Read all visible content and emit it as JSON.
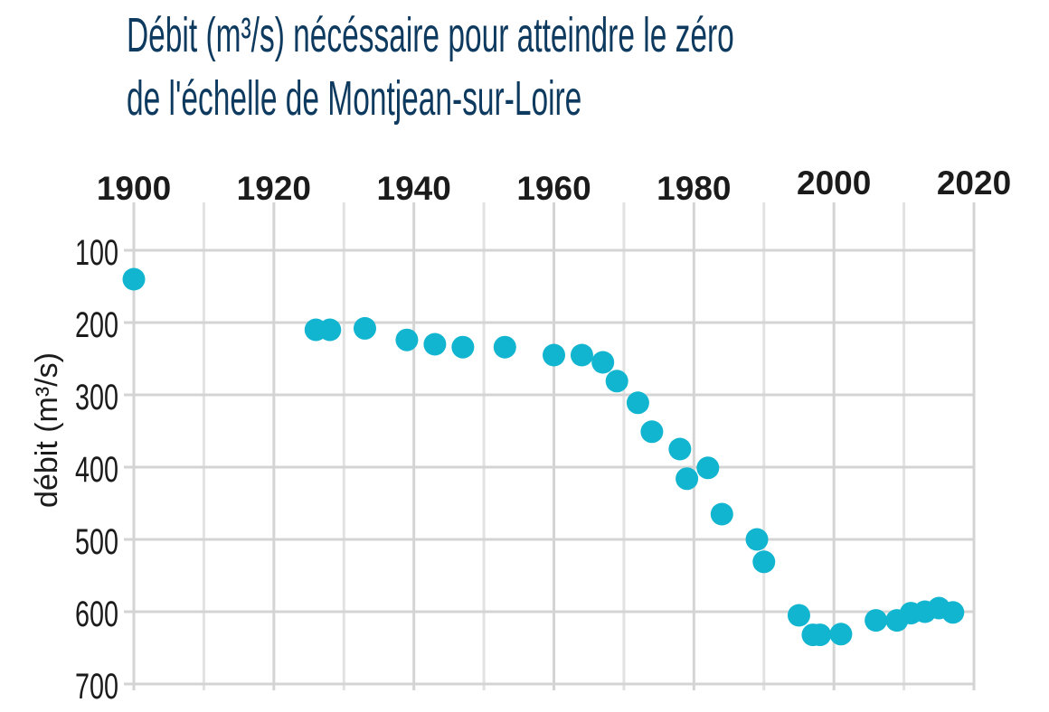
{
  "title_lines": [
    "Débit (m³/s) nécéssaire pour atteindre le zéro",
    "de l'échelle de Montjean-sur-Loire"
  ],
  "colors": {
    "title": "#0d3a5e",
    "point": "#12b5cf",
    "grid": "#d4d4d4",
    "text": "#1b1b1b"
  },
  "chart_data": {
    "type": "scatter",
    "title": "Débit (m³/s) nécéssaire pour atteindre le zéro de l'échelle de Montjean-sur-Loire",
    "xlabel": "",
    "ylabel": "débit (m³/s)",
    "xlim": [
      1900,
      2020
    ],
    "ylim": [
      100,
      700
    ],
    "y_inverted": true,
    "x_axis_position": "top",
    "grid": true,
    "x_ticks": [
      1900,
      1920,
      1940,
      1960,
      1980,
      2000,
      2020
    ],
    "x_tick_labels": [
      "1900",
      "1920",
      "1940",
      "1960",
      "1980",
      "2000",
      "2020"
    ],
    "x_minor_gridlines": [
      1910,
      1930,
      1950,
      1970,
      1990,
      2010
    ],
    "y_ticks": [
      100,
      200,
      300,
      400,
      500,
      600,
      700
    ],
    "y_tick_labels": [
      "100",
      "200",
      "300",
      "400",
      "500",
      "600",
      "700"
    ],
    "points": [
      {
        "x": 1900,
        "y": 140
      },
      {
        "x": 1926,
        "y": 210
      },
      {
        "x": 1928,
        "y": 210
      },
      {
        "x": 1933,
        "y": 208
      },
      {
        "x": 1939,
        "y": 224
      },
      {
        "x": 1943,
        "y": 230
      },
      {
        "x": 1947,
        "y": 234
      },
      {
        "x": 1953,
        "y": 234
      },
      {
        "x": 1960,
        "y": 245
      },
      {
        "x": 1964,
        "y": 245
      },
      {
        "x": 1967,
        "y": 255
      },
      {
        "x": 1969,
        "y": 281
      },
      {
        "x": 1972,
        "y": 311
      },
      {
        "x": 1974,
        "y": 351
      },
      {
        "x": 1978,
        "y": 375
      },
      {
        "x": 1979,
        "y": 416
      },
      {
        "x": 1982,
        "y": 401
      },
      {
        "x": 1984,
        "y": 465
      },
      {
        "x": 1989,
        "y": 500
      },
      {
        "x": 1990,
        "y": 531
      },
      {
        "x": 1995,
        "y": 605
      },
      {
        "x": 1997,
        "y": 632
      },
      {
        "x": 1998,
        "y": 632
      },
      {
        "x": 2001,
        "y": 631
      },
      {
        "x": 2006,
        "y": 612
      },
      {
        "x": 2009,
        "y": 612
      },
      {
        "x": 2011,
        "y": 602
      },
      {
        "x": 2013,
        "y": 600
      },
      {
        "x": 2015,
        "y": 595
      },
      {
        "x": 2017,
        "y": 601
      }
    ]
  }
}
